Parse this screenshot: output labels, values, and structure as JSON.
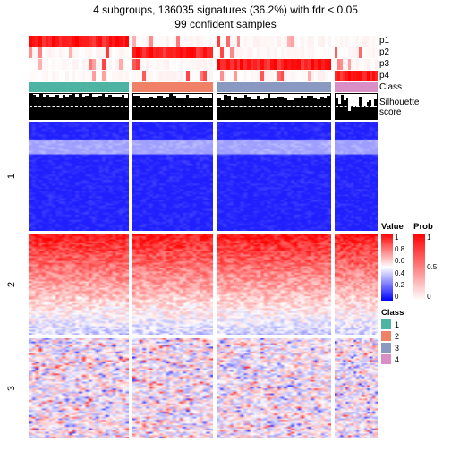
{
  "title_line1": "4 subgroups, 136035 signatures (36.2%) with fdr < 0.05",
  "title_line2": "99 confident samples",
  "layout": {
    "col_groups": [
      {
        "n": 30,
        "class_color": "#4fb3a3"
      },
      {
        "n": 24,
        "class_color": "#f08066"
      },
      {
        "n": 34,
        "class_color": "#8a99c2"
      },
      {
        "n": 16,
        "class_color": "#d98fc5"
      }
    ],
    "row_groups": [
      {
        "label": "1",
        "height": 122,
        "base_hue": "blue"
      },
      {
        "label": "2",
        "height": 112,
        "base_hue": "red_fade"
      },
      {
        "label": "3",
        "height": 112,
        "base_hue": "pale_mix"
      }
    ],
    "seg_widths": [
      112,
      90,
      128,
      48
    ],
    "gap": 4
  },
  "annotation_tracks": [
    {
      "name": "p1",
      "peak_group": 0
    },
    {
      "name": "p2",
      "peak_group": 1
    },
    {
      "name": "p3",
      "peak_group": 2
    },
    {
      "name": "p4",
      "peak_group": 3
    }
  ],
  "class_label": "Class",
  "silhouette": {
    "label": "Silhouette\nscore",
    "ticks": [
      "1",
      "0.5",
      "0"
    ],
    "ranges": [
      [
        0.85,
        1.0
      ],
      [
        0.8,
        1.0
      ],
      [
        0.75,
        1.0
      ],
      [
        0.3,
        0.95
      ]
    ]
  },
  "legends": {
    "value": {
      "title": "Value",
      "ticks": [
        "1",
        "0.8",
        "0.6",
        "0.4",
        "0.2",
        "0"
      ]
    },
    "prob": {
      "title": "Prob",
      "ticks": [
        "1",
        "0.5",
        "0"
      ]
    },
    "class": {
      "title": "Class",
      "items": [
        {
          "label": "1",
          "color": "#4fb3a3"
        },
        {
          "label": "2",
          "color": "#f08066"
        },
        {
          "label": "3",
          "color": "#8a99c2"
        },
        {
          "label": "4",
          "color": "#d98fc5"
        }
      ]
    }
  },
  "colors": {
    "prob_low": "#ffffff",
    "prob_high": "#ff0000",
    "heat_low": "#0000ff",
    "heat_mid": "#ffffff",
    "heat_high": "#ff0000",
    "sil_bar": "#000000"
  }
}
